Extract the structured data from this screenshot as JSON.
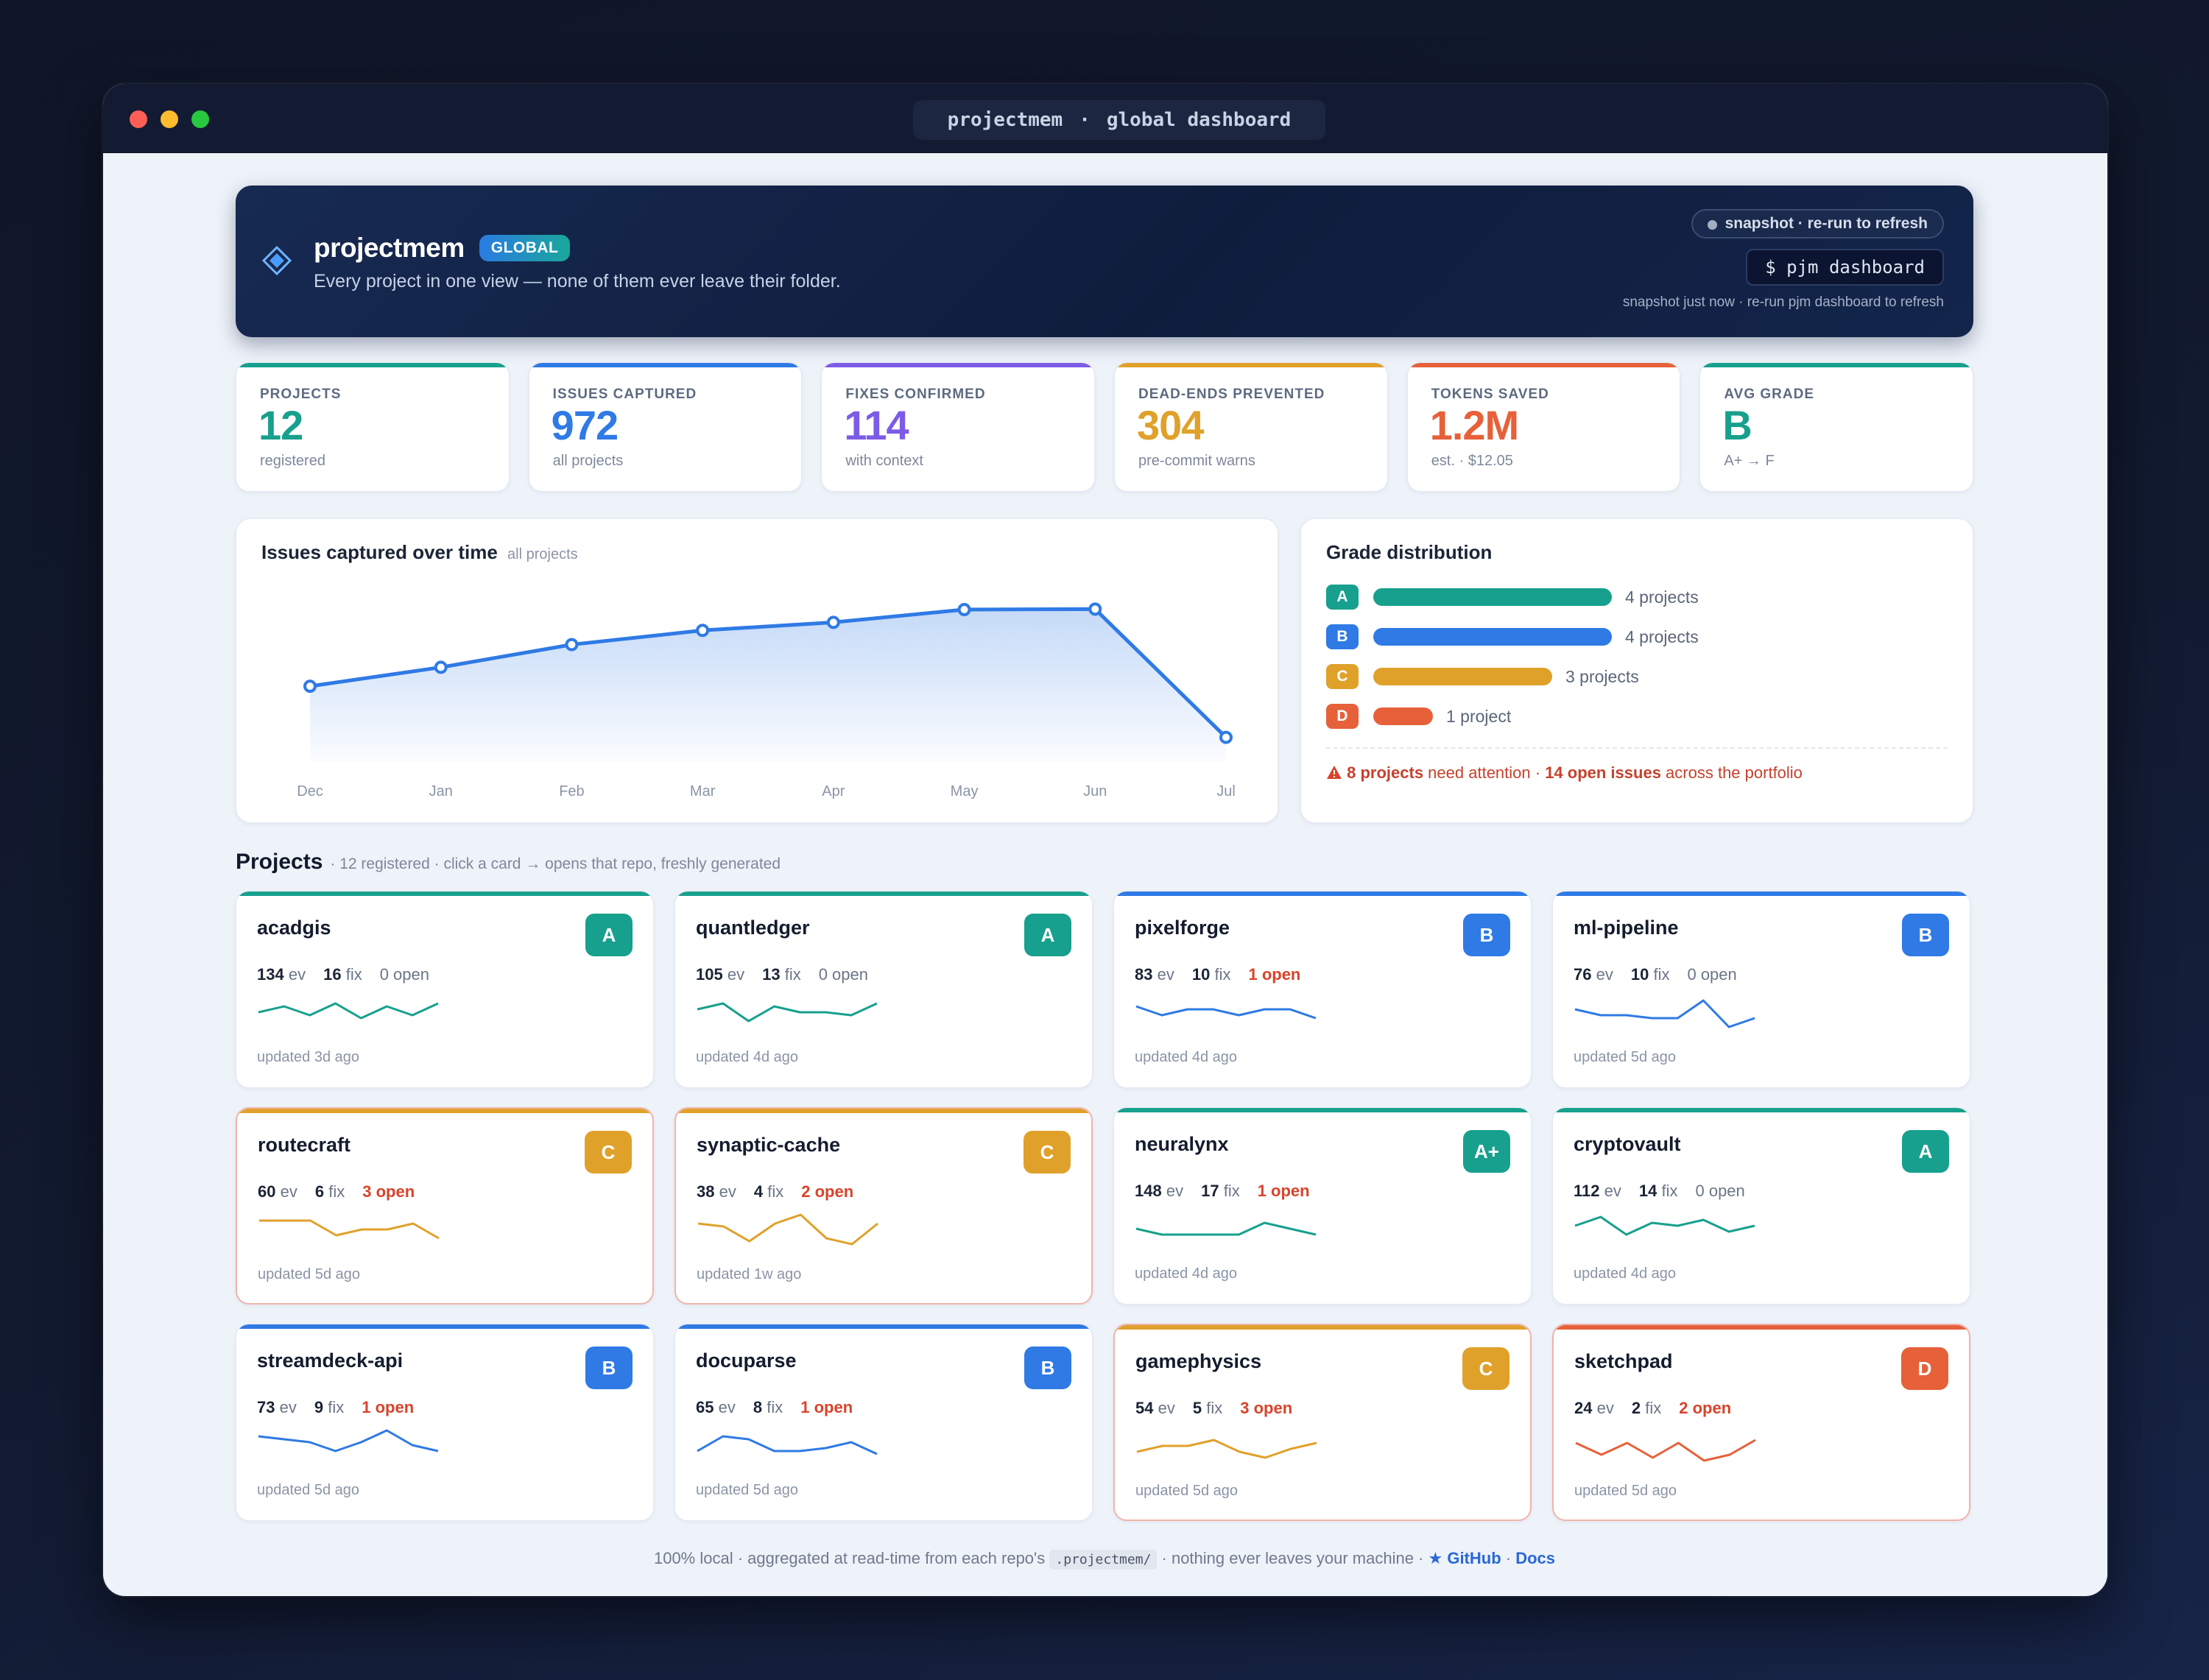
{
  "window": {
    "title_app": "projectmem",
    "title_sep": "·",
    "title_view": "global dashboard"
  },
  "header": {
    "logo_icon": "diamond-logo-icon",
    "brand": "projectmem",
    "badge": "GLOBAL",
    "tagline": "Every project in one view — none of them ever leave their folder.",
    "snapshot_pill": "snapshot · re-run to refresh",
    "command": "$ pjm dashboard",
    "snapshot_note": "snapshot just now · re-run pjm dashboard to refresh"
  },
  "stats": [
    {
      "label": "PROJECTS",
      "value": "12",
      "sub": "registered",
      "color": "#17a08d"
    },
    {
      "label": "ISSUES CAPTURED",
      "value": "972",
      "sub": "all projects",
      "color": "#2f7ae5"
    },
    {
      "label": "FIXES CONFIRMED",
      "value": "114",
      "sub": "with context",
      "color": "#7c5ce6"
    },
    {
      "label": "DEAD-ENDS PREVENTED",
      "value": "304",
      "sub": "pre-commit warns",
      "color": "#e0a12b"
    },
    {
      "label": "TOKENS SAVED",
      "value": "1.2M",
      "sub": "est. · $12.05",
      "color": "#e6613a"
    },
    {
      "label": "AVG GRADE",
      "value": "B",
      "sub": "A+ → F",
      "color": "#17a08d"
    }
  ],
  "issues_chart": {
    "title": "Issues captured over time",
    "subtitle": "all projects",
    "chart_data": {
      "type": "area",
      "title": "Issues captured over time",
      "categories": [
        "Dec",
        "Jan",
        "Feb",
        "Mar",
        "Apr",
        "May",
        "Jun",
        "Jul"
      ],
      "values": [
        160,
        200,
        248,
        278,
        295,
        322,
        323,
        52
      ],
      "ylim": [
        0,
        420
      ],
      "grid": false,
      "color": "#2f7ae5"
    }
  },
  "grades": {
    "title": "Grade distribution",
    "chart_data": {
      "type": "bar",
      "categories": [
        "A",
        "B",
        "C",
        "D"
      ],
      "values": [
        4,
        4,
        3,
        1
      ],
      "labels": [
        "4 projects",
        "4 projects",
        "3 projects",
        "1 project"
      ],
      "colors": [
        "#17a08d",
        "#2f7ae5",
        "#e0a12b",
        "#e6613a"
      ]
    },
    "warn_icon": "warning-icon",
    "attention_count": "8 projects",
    "attention_mid": " need attention · ",
    "attention_open": "14 open issues",
    "attention_end": " across the portfolio"
  },
  "projects": {
    "title": "Projects",
    "subtitle": "· 12 registered · click a card → opens that repo, freshly generated",
    "ev_unit": "ev",
    "fix_unit": "fix",
    "items": [
      {
        "name": "acadgis",
        "grade": "A",
        "color": "#17a08d",
        "ev": "134",
        "fix": "16",
        "open": "0 open",
        "warn": false,
        "updated": "updated 3d ago",
        "spark": [
          5,
          7,
          4,
          8,
          3,
          7,
          4,
          8
        ]
      },
      {
        "name": "quantledger",
        "grade": "A",
        "color": "#17a08d",
        "ev": "105",
        "fix": "13",
        "open": "0 open",
        "warn": false,
        "updated": "updated 4d ago",
        "spark": [
          6,
          8,
          2,
          7,
          5,
          5,
          4,
          8
        ]
      },
      {
        "name": "pixelforge",
        "grade": "B",
        "color": "#2f7ae5",
        "ev": "83",
        "fix": "10",
        "open": "1 open",
        "warn": false,
        "updated": "updated 4d ago",
        "spark": [
          7,
          4,
          6,
          6,
          4,
          6,
          6,
          3
        ]
      },
      {
        "name": "ml-pipeline",
        "grade": "B",
        "color": "#2f7ae5",
        "ev": "76",
        "fix": "10",
        "open": "0 open",
        "warn": false,
        "updated": "updated 5d ago",
        "spark": [
          6,
          4,
          4,
          3,
          3,
          9,
          0,
          3
        ]
      },
      {
        "name": "routecraft",
        "grade": "C",
        "color": "#e0a12b",
        "ev": "60",
        "fix": "6",
        "open": "3 open",
        "warn": true,
        "updated": "updated 5d ago",
        "spark": [
          8,
          8,
          8,
          3,
          5,
          5,
          7,
          2
        ]
      },
      {
        "name": "synaptic-cache",
        "grade": "C",
        "color": "#e0a12b",
        "ev": "38",
        "fix": "4",
        "open": "2 open",
        "warn": true,
        "updated": "updated 1w ago",
        "spark": [
          7,
          6,
          1,
          7,
          10,
          2,
          0,
          7
        ]
      },
      {
        "name": "neuralynx",
        "grade": "A+",
        "color": "#17a08d",
        "ev": "148",
        "fix": "17",
        "open": "1 open",
        "warn": false,
        "updated": "updated 4d ago",
        "spark": [
          5,
          3,
          3,
          3,
          3,
          7,
          5,
          3
        ]
      },
      {
        "name": "cryptovault",
        "grade": "A",
        "color": "#17a08d",
        "ev": "112",
        "fix": "14",
        "open": "0 open",
        "warn": false,
        "updated": "updated 4d ago",
        "spark": [
          6,
          9,
          3,
          7,
          6,
          8,
          4,
          6
        ]
      },
      {
        "name": "streamdeck-api",
        "grade": "B",
        "color": "#2f7ae5",
        "ev": "73",
        "fix": "9",
        "open": "1 open",
        "warn": false,
        "updated": "updated 5d ago",
        "spark": [
          8,
          7,
          6,
          3,
          6,
          10,
          5,
          3
        ]
      },
      {
        "name": "docuparse",
        "grade": "B",
        "color": "#2f7ae5",
        "ev": "65",
        "fix": "8",
        "open": "1 open",
        "warn": false,
        "updated": "updated 5d ago",
        "spark": [
          3,
          8,
          7,
          3,
          3,
          4,
          6,
          2
        ]
      },
      {
        "name": "gamephysics",
        "grade": "C",
        "color": "#e0a12b",
        "ev": "54",
        "fix": "5",
        "open": "3 open",
        "warn": true,
        "updated": "updated 5d ago",
        "spark": [
          3,
          5,
          5,
          7,
          3,
          1,
          4,
          6
        ]
      },
      {
        "name": "sketchpad",
        "grade": "D",
        "color": "#e6613a",
        "ev": "24",
        "fix": "2",
        "open": "2 open",
        "warn": true,
        "updated": "updated 5d ago",
        "spark": [
          6,
          2,
          6,
          1,
          6,
          0,
          2,
          7
        ]
      }
    ]
  },
  "footer": {
    "pre": "100% local · aggregated at read-time from each repo's ",
    "code": ".projectmem/",
    "mid": " · nothing ever leaves your machine · ",
    "star_icon": "star-icon",
    "github": "GitHub",
    "sep": " · ",
    "docs": "Docs"
  }
}
